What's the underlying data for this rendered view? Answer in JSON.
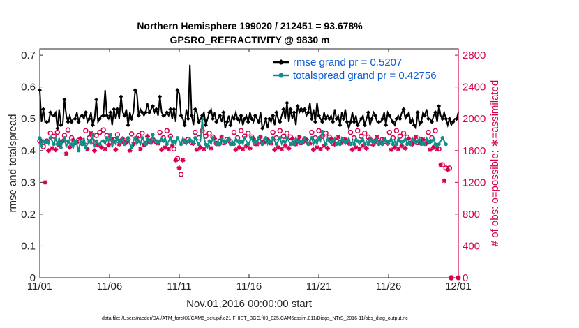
{
  "chart_data": {
    "type": "line",
    "title_line1": "Northern Hemisphere 199020 / 212451 = 93.678%",
    "title_line2": "GPSRO_REFRACTIVITY @ 9830 m",
    "xlabel": "Nov.01,2016 00:00:00 start",
    "ylabel_left": "rmse and totalspread",
    "ylabel_right": "# of obs: o=possible; ∗=assimilated",
    "footnote": "data file: /Users/raeder/DAI/ATM_forcXX/CAM6_setup/f.e21.FHIST_BGC.f09_025.CAM6assim.011/Diags_NTrS_2016-11/obs_diag_output.nc",
    "x_ticks": [
      "11/01",
      "11/06",
      "11/11",
      "11/16",
      "11/21",
      "11/26",
      "12/01"
    ],
    "x_range_days": [
      0,
      30
    ],
    "y_left_ticks": [
      "0",
      "0.1",
      "0.2",
      "0.3",
      "0.4",
      "0.5",
      "0.6",
      "0.7"
    ],
    "y_left_range": [
      0,
      0.72
    ],
    "y_right_ticks": [
      "0",
      "400",
      "800",
      "1200",
      "1600",
      "2000",
      "2400",
      "2800"
    ],
    "y_right_range": [
      0,
      2880
    ],
    "legend_position": "top-right",
    "colors": {
      "rmse": "#000000",
      "spread": "#0f8f8a",
      "obs": "#d6004f",
      "legend_text": "#0b5bd6"
    },
    "series": [
      {
        "name": "rmse grand pr = 0.5207",
        "style": "line-diamond",
        "values": [
          0.59,
          0.49,
          0.53,
          0.49,
          0.49,
          0.49,
          0.52,
          0.51,
          0.51,
          0.52,
          0.47,
          0.53,
          0.48,
          0.48,
          0.56,
          0.51,
          0.49,
          0.51,
          0.49,
          0.5,
          0.5,
          0.52,
          0.49,
          0.51,
          0.51,
          0.5,
          0.52,
          0.49,
          0.5,
          0.52,
          0.48,
          0.5,
          0.56,
          0.49,
          0.5,
          0.51,
          0.51,
          0.59,
          0.51,
          0.5,
          0.52,
          0.48,
          0.53,
          0.5,
          0.53,
          0.5,
          0.57,
          0.52,
          0.51,
          0.53,
          0.48,
          0.52,
          0.5,
          0.52,
          0.59,
          0.58,
          0.51,
          0.53,
          0.52,
          0.51,
          0.52,
          0.55,
          0.52,
          0.53,
          0.54,
          0.52,
          0.53,
          0.51,
          0.57,
          0.52,
          0.51,
          0.51,
          0.52,
          0.51,
          0.53,
          0.5,
          0.53,
          0.49,
          0.59,
          0.58,
          0.51,
          0.5,
          0.48,
          0.53,
          0.5,
          0.67,
          0.51,
          0.48,
          0.53,
          0.52,
          0.49,
          0.5,
          0.51,
          0.52,
          0.48,
          0.5,
          0.52,
          0.53,
          0.5,
          0.52,
          0.49,
          0.5,
          0.51,
          0.49,
          0.52,
          0.47,
          0.49,
          0.51,
          0.48,
          0.51,
          0.5,
          0.52,
          0.5,
          0.49,
          0.51,
          0.48,
          0.5,
          0.51,
          0.49,
          0.52,
          0.5,
          0.49,
          0.51,
          0.5,
          0.49,
          0.52,
          0.47,
          0.48,
          0.5,
          0.47,
          0.5,
          0.49,
          0.51,
          0.48,
          0.52,
          0.5,
          0.49,
          0.51,
          0.53,
          0.5,
          0.55,
          0.49,
          0.53,
          0.5,
          0.52,
          0.48,
          0.54,
          0.52,
          0.53,
          0.52,
          0.53,
          0.51,
          0.52,
          0.55,
          0.5,
          0.53,
          0.49,
          0.55,
          0.51,
          0.5,
          0.49,
          0.52,
          0.5,
          0.51,
          0.5,
          0.51,
          0.49,
          0.53,
          0.5,
          0.51,
          0.48,
          0.52,
          0.5,
          0.53,
          0.49,
          0.47,
          0.49,
          0.52,
          0.49,
          0.51,
          0.48,
          0.49,
          0.5,
          0.51,
          0.48,
          0.5,
          0.52,
          0.48,
          0.5,
          0.52,
          0.51,
          0.49,
          0.49,
          0.49,
          0.5,
          0.52,
          0.48,
          0.52,
          0.51,
          0.5,
          0.49,
          0.48,
          0.5,
          0.51,
          0.5,
          0.52,
          0.53,
          0.5,
          0.51,
          0.52,
          0.49,
          0.5,
          0.48,
          0.47,
          0.52,
          0.48,
          0.49,
          0.52,
          0.51,
          0.53,
          0.5,
          0.5,
          0.49,
          0.51,
          0.52,
          0.49,
          0.54,
          0.51,
          0.5,
          0.52,
          0.5,
          0.48,
          0.5,
          0.48,
          0.49,
          0.5,
          0.5,
          0.52
        ]
      },
      {
        "name": "totalspread grand pr = 0.42756",
        "style": "line-circle",
        "values": [
          0.44,
          0.41,
          0.43,
          0.42,
          0.43,
          0.42,
          0.44,
          0.43,
          0.42,
          0.44,
          0.42,
          0.44,
          0.41,
          0.43,
          0.44,
          0.41,
          0.43,
          0.42,
          0.42,
          0.41,
          0.43,
          0.42,
          0.4,
          0.43,
          0.42,
          0.44,
          0.41,
          0.42,
          0.43,
          0.42,
          0.45,
          0.41,
          0.43,
          0.42,
          0.42,
          0.43,
          0.43,
          0.42,
          0.44,
          0.43,
          0.45,
          0.41,
          0.43,
          0.42,
          0.44,
          0.42,
          0.43,
          0.44,
          0.42,
          0.43,
          0.44,
          0.42,
          0.41,
          0.43,
          0.44,
          0.42,
          0.43,
          0.42,
          0.44,
          0.43,
          0.42,
          0.44,
          0.43,
          0.42,
          0.45,
          0.43,
          0.43,
          0.42,
          0.43,
          0.44,
          0.43,
          0.44,
          0.42,
          0.43,
          0.44,
          0.42,
          0.43,
          0.42,
          0.44,
          0.43,
          0.42,
          0.44,
          0.43,
          0.42,
          0.43,
          0.44,
          0.43,
          0.42,
          0.44,
          0.43,
          0.42,
          0.43,
          0.5,
          0.44,
          0.42,
          0.41,
          0.43,
          0.42,
          0.44,
          0.43,
          0.42,
          0.43,
          0.42,
          0.44,
          0.43,
          0.42,
          0.43,
          0.44,
          0.42,
          0.43,
          0.42,
          0.44,
          0.43,
          0.42,
          0.43,
          0.42,
          0.44,
          0.43,
          0.42,
          0.43,
          0.44,
          0.42,
          0.43,
          0.42,
          0.44,
          0.43,
          0.42,
          0.43,
          0.44,
          0.42,
          0.43,
          0.42,
          0.44,
          0.43,
          0.42,
          0.43,
          0.44,
          0.42,
          0.43,
          0.42,
          0.44,
          0.43,
          0.42,
          0.43,
          0.42,
          0.44,
          0.43,
          0.42,
          0.43,
          0.42,
          0.44,
          0.43,
          0.42,
          0.43,
          0.44,
          0.42,
          0.43,
          0.42,
          0.44,
          0.43,
          0.46,
          0.43,
          0.42,
          0.44,
          0.43,
          0.42,
          0.43,
          0.44,
          0.42,
          0.43,
          0.42,
          0.44,
          0.43,
          0.42,
          0.43,
          0.44,
          0.42,
          0.43,
          0.42,
          0.44,
          0.43,
          0.42,
          0.43,
          0.44,
          0.42,
          0.43,
          0.42,
          0.44,
          0.43,
          0.42,
          0.43,
          0.44,
          0.42,
          0.43,
          0.42,
          0.44,
          0.43,
          0.42,
          0.43,
          0.44,
          0.42,
          0.43,
          0.42,
          0.44,
          0.43,
          0.42,
          0.43,
          0.44,
          0.42,
          0.43,
          0.42,
          0.44,
          0.43,
          0.42,
          0.43,
          0.44,
          0.42,
          0.43,
          0.42,
          0.44,
          0.43,
          0.42,
          0.43,
          0.44,
          0.42,
          0.41,
          0.42,
          0.43,
          0.44,
          0.43,
          0.42
        ]
      },
      {
        "name": "obs possible",
        "style": "open-circle",
        "axis": "right",
        "values": [
          1720,
          1790,
          1650,
          1300,
          1720,
          1680,
          1820,
          1710,
          1780,
          1690,
          1830,
          1750,
          1700,
          1800,
          1790,
          1640,
          1860,
          1720,
          1760,
          1810,
          1700,
          1790,
          1730,
          1830,
          1690,
          1770,
          1850,
          1700,
          1760,
          1900,
          1720,
          1680,
          1790,
          1750,
          1830,
          1720,
          1860,
          1700,
          1790,
          1750,
          1710,
          1820,
          1740,
          1690,
          1800,
          1760,
          1720,
          1830,
          1700,
          1780,
          1740,
          1680,
          1810,
          1760,
          1720,
          1840,
          1790,
          1700,
          1820,
          1750,
          1690,
          1860,
          1720,
          1780,
          1740,
          1800,
          1710,
          1770,
          1830,
          1690,
          1760,
          1720,
          1850,
          1700,
          1780,
          1740,
          1620,
          1560,
          1500,
          1460,
          1300,
          1560,
          1720,
          1780,
          1740,
          1800,
          1700,
          1770,
          1830,
          1690,
          1760,
          1720,
          1850,
          1700,
          1780,
          1740,
          1820,
          1710,
          1770,
          1830,
          1690,
          1760,
          1720,
          1850,
          1700,
          1780,
          1740,
          1820,
          1710,
          1770,
          1830,
          1690,
          1760,
          1720,
          1850,
          1700,
          1780,
          1740,
          1820,
          1710,
          1770,
          1830,
          1690,
          1760,
          1720,
          1850,
          1700,
          1780,
          1740,
          1820,
          1710,
          1770,
          1830,
          1690,
          1760,
          1720,
          1850,
          1700,
          1780,
          1740,
          1820,
          1710,
          1770,
          1830,
          1690,
          1760,
          1720,
          1850,
          1700,
          1780,
          1740,
          1820,
          1710,
          1770,
          1830,
          1690,
          1760,
          1720,
          1850,
          1700,
          1780,
          1740,
          1820,
          1710,
          1770,
          1830,
          1690,
          1760,
          1720,
          1850,
          1700,
          1780,
          1740,
          1820,
          1710,
          1770,
          1830,
          1690,
          1760,
          1720,
          1850,
          1700,
          1780,
          1740,
          1820,
          1710,
          1770,
          1830,
          1690,
          1760,
          1720,
          1850,
          1700,
          1780,
          1740,
          1820,
          1710,
          1770,
          1830,
          1690,
          1760,
          1720,
          1850,
          1700,
          1780,
          1740,
          1820,
          1710,
          1770,
          1830,
          1690,
          1760,
          1720,
          1850,
          1700,
          1780,
          1740,
          1820,
          1710,
          1770,
          1830,
          1690,
          1760,
          1720,
          1850,
          1700,
          1620,
          1500,
          1420,
          1300,
          1380,
          1440,
          1380,
          0
        ]
      },
      {
        "name": "obs assimilated",
        "style": "asterisk",
        "axis": "right",
        "values": [
          1640,
          1720,
          1560,
          1200,
          1640,
          1600,
          1740,
          1630,
          1700,
          1610,
          1750,
          1670,
          1620,
          1720,
          1710,
          1560,
          1780,
          1640,
          1680,
          1730,
          1620,
          1710,
          1650,
          1750,
          1610,
          1690,
          1770,
          1620,
          1680,
          1820,
          1640,
          1600,
          1710,
          1670,
          1750,
          1640,
          1780,
          1620,
          1710,
          1670,
          1630,
          1740,
          1660,
          1610,
          1720,
          1680,
          1640,
          1750,
          1620,
          1700,
          1660,
          1600,
          1730,
          1680,
          1640,
          1760,
          1710,
          1620,
          1740,
          1670,
          1610,
          1780,
          1640,
          1700,
          1660,
          1720,
          1630,
          1690,
          1750,
          1610,
          1680,
          1640,
          1770,
          1620,
          1700,
          1660,
          1540,
          1480,
          1420,
          1380,
          1220,
          1480,
          1640,
          1700,
          1660,
          1720,
          1620,
          1690,
          1750,
          1610,
          1680,
          1640,
          1770,
          1620,
          1700,
          1660,
          1740,
          1630,
          1690,
          1750,
          1610,
          1680,
          1640,
          1770,
          1620,
          1700,
          1660,
          1740,
          1630,
          1690,
          1750,
          1610,
          1680,
          1640,
          1770,
          1620,
          1700,
          1660,
          1740,
          1630,
          1690,
          1750,
          1610,
          1680,
          1640,
          1770,
          1620,
          1700,
          1660,
          1740,
          1630,
          1690,
          1750,
          1610,
          1680,
          1640,
          1770,
          1620,
          1700,
          1660,
          1740,
          1630,
          1690,
          1750,
          1610,
          1680,
          1640,
          1770,
          1620,
          1700,
          1660,
          1740,
          1630,
          1690,
          1750,
          1610,
          1680,
          1640,
          1770,
          1620,
          1700,
          1660,
          1740,
          1630,
          1690,
          1750,
          1610,
          1680,
          1640,
          1770,
          1620,
          1700,
          1660,
          1740,
          1630,
          1690,
          1750,
          1610,
          1680,
          1640,
          1770,
          1620,
          1700,
          1660,
          1740,
          1630,
          1690,
          1750,
          1610,
          1680,
          1640,
          1770,
          1620,
          1700,
          1660,
          1740,
          1630,
          1690,
          1750,
          1610,
          1680,
          1640,
          1770,
          1620,
          1700,
          1660,
          1740,
          1630,
          1690,
          1750,
          1610,
          1680,
          1640,
          1770,
          1620,
          1700,
          1660,
          1740,
          1630,
          1690,
          1750,
          1610,
          1680,
          1640,
          1770,
          1620,
          1540,
          1420,
          1340,
          1220,
          1300,
          1360,
          1300,
          0
        ]
      }
    ]
  }
}
